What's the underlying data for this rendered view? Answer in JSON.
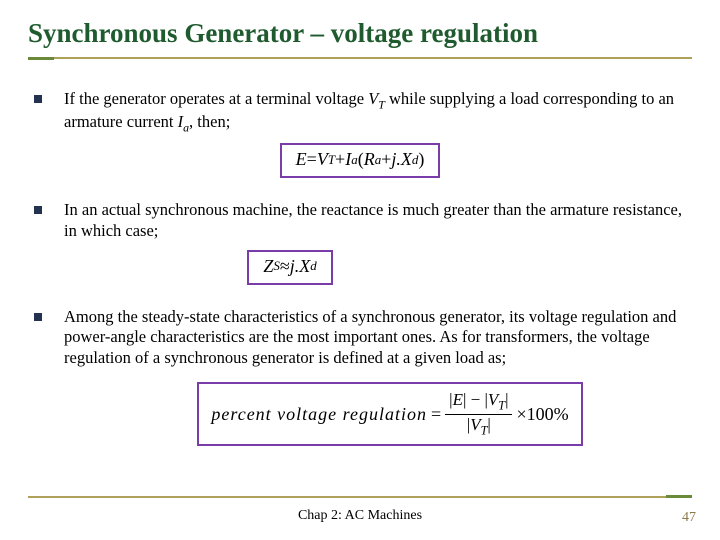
{
  "colors": {
    "title_text": "#1f5b2f",
    "rule_main": "#b0a15a",
    "rule_accent": "#6a8a3a",
    "bullet": "#22324f",
    "eq_border": "#7a3ca8",
    "pagenum": "#8a7a4a"
  },
  "title": "Synchronous Generator – voltage regulation",
  "bullets": {
    "b1_pre": "If the generator operates at a terminal voltage ",
    "b1_vt": "V",
    "b1_vt_sub": "T",
    "b1_mid": " while supplying a load corresponding to an armature current ",
    "b1_ia": "I",
    "b1_ia_sub": "a",
    "b1_post": ", then;",
    "b2": "In an actual synchronous machine, the reactance is much greater than the armature resistance, in which case;",
    "b3": "Among the steady-state characteristics of a synchronous generator, its voltage regulation and power-angle characteristics are the most important ones. As for transformers, the voltage regulation of a synchronous generator is defined at a given load as;"
  },
  "equations": {
    "eq1_lhs": "E",
    "eq1_eq": " = ",
    "eq1_vt": "V",
    "eq1_vt_sub": "T",
    "eq1_plus1": " + ",
    "eq1_ia": "I",
    "eq1_ia_sub": "a",
    "eq1_open": "(",
    "eq1_ra": "R",
    "eq1_ra_sub": "a",
    "eq1_plus2": " + ",
    "eq1_jx": "j.X",
    "eq1_xd_sub": "d",
    "eq1_close": ")",
    "eq2_lhs": "Z",
    "eq2_lhs_sub": "S",
    "eq2_approx": " ≈ ",
    "eq2_rhs": "j.X",
    "eq2_rhs_sub": "d",
    "eq3_label": "percent   voltage   regulation",
    "eq3_eq": " = ",
    "eq3_num_open": "|",
    "eq3_num_e": "E",
    "eq3_num_mid": "| − |",
    "eq3_num_vt": "V",
    "eq3_num_vt_sub": "T",
    "eq3_num_close": "|",
    "eq3_den_open": "|",
    "eq3_den_vt": "V",
    "eq3_den_vt_sub": "T",
    "eq3_den_close": "|",
    "eq3_tail": " ×100%"
  },
  "footer": "Chap 2: AC Machines",
  "page": "47"
}
